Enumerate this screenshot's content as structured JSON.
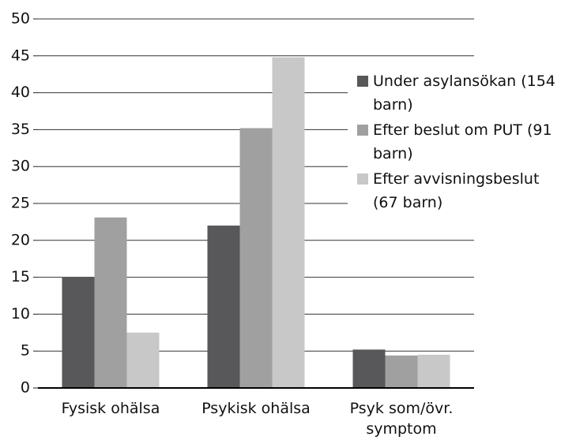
{
  "chart_data": {
    "type": "bar",
    "categories": [
      "Fysisk ohälsa",
      "Psykisk ohälsa",
      "Psyk som/övr. symptom"
    ],
    "series": [
      {
        "name": "Under asylansökan (154 barn)",
        "color": "#58585a",
        "values": [
          15,
          22,
          5.2
        ]
      },
      {
        "name": "Efter beslut om PUT (91 barn)",
        "color": "#a0a0a0",
        "values": [
          23.1,
          35.2,
          4.4
        ]
      },
      {
        "name": "Efter avvisningsbeslut (67 barn)",
        "color": "#c8c8c8",
        "values": [
          7.5,
          44.8,
          4.5
        ]
      }
    ],
    "ylim": [
      0,
      50
    ],
    "yticks": [
      0,
      5,
      10,
      15,
      20,
      25,
      30,
      35,
      40,
      45,
      50
    ],
    "grid": true,
    "legend": "right"
  }
}
